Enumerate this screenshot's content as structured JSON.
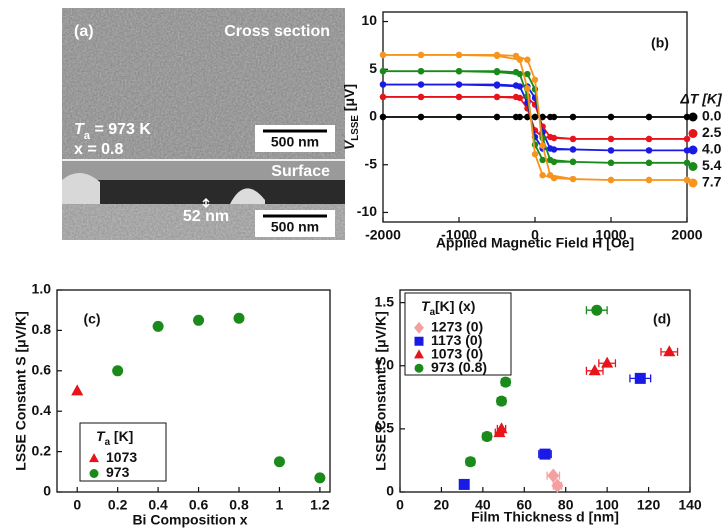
{
  "image_panel": {
    "label": "(a)",
    "top_caption": "Cross section",
    "anneal": {
      "main": "T",
      "sub": "a",
      "rest": " = 973 K"
    },
    "composition": "x = 0.8",
    "top_scale": "500 nm",
    "bottom_caption": "Surface",
    "thickness": "52 nm",
    "bottom_scale": "500 nm"
  },
  "chart_data": [
    {
      "type": "line",
      "panel_label": "(b)",
      "xlabel": "Applied Magnetic Field H [Oe]",
      "ylabel": {
        "main": "V",
        "sub": "LSSE",
        "rest": " [μV]"
      },
      "legend_title": "ΔT [K]",
      "legend": "right",
      "x": [
        -2000,
        -1500,
        -1000,
        -500,
        -250,
        -100,
        0,
        100,
        200,
        500,
        1000,
        1500,
        2000,
        2000,
        1500,
        1000,
        500,
        250,
        100,
        0,
        -100,
        -200,
        -500,
        -1000,
        -1500,
        -2000
      ],
      "xlim": [
        -2000,
        2000
      ],
      "xticks": [
        -2000,
        -1000,
        0,
        1000,
        2000
      ],
      "ylim": [
        -11,
        11
      ],
      "yticks": [
        -10,
        -5,
        0,
        5,
        10
      ],
      "series": [
        {
          "name": "0.0",
          "color": "#000000",
          "values": [
            0,
            0,
            0,
            0,
            0,
            0,
            0,
            0,
            0,
            0,
            0,
            0,
            0,
            0,
            0,
            0,
            0,
            0,
            0,
            0,
            0,
            0,
            0,
            0,
            0,
            0
          ]
        },
        {
          "name": "2.5",
          "color": "#e8141b",
          "values": [
            2.1,
            2.1,
            2.1,
            2.1,
            2.1,
            2.0,
            1.3,
            -1.0,
            -2.1,
            -2.3,
            -2.3,
            -2.3,
            -2.3,
            -2.3,
            -2.3,
            -2.3,
            -2.3,
            -2.2,
            -2.1,
            -1.4,
            0.9,
            2.0,
            2.1,
            2.1,
            2.1,
            2.1
          ]
        },
        {
          "name": "4.0",
          "color": "#1a1ae6",
          "values": [
            3.4,
            3.4,
            3.4,
            3.4,
            3.3,
            3.2,
            2.0,
            -1.6,
            -3.3,
            -3.4,
            -3.5,
            -3.5,
            -3.5,
            -3.5,
            -3.5,
            -3.5,
            -3.4,
            -3.4,
            -3.3,
            -2.1,
            1.5,
            3.2,
            3.3,
            3.4,
            3.4,
            3.4
          ]
        },
        {
          "name": "5.4",
          "color": "#1a8a1a",
          "values": [
            4.8,
            4.8,
            4.8,
            4.8,
            4.7,
            4.5,
            2.9,
            -2.2,
            -4.5,
            -4.7,
            -4.8,
            -4.8,
            -4.8,
            -4.8,
            -4.8,
            -4.8,
            -4.7,
            -4.7,
            -4.5,
            -2.9,
            2.2,
            4.5,
            4.7,
            4.8,
            4.8,
            4.8
          ]
        },
        {
          "name": "7.7",
          "color": "#f7941d",
          "values": [
            6.5,
            6.5,
            6.5,
            6.5,
            6.4,
            6.0,
            3.9,
            -3.0,
            -6.1,
            -6.5,
            -6.6,
            -6.6,
            -6.6,
            -6.6,
            -6.6,
            -6.6,
            -6.5,
            -6.4,
            -6.1,
            -3.9,
            3.0,
            6.0,
            6.4,
            6.5,
            6.5,
            6.5
          ]
        }
      ]
    },
    {
      "type": "scatter",
      "panel_label": "(c)",
      "xlabel": "Bi Composition x",
      "ylabel": "LSSE Constant S [μV/K]",
      "legend_title": {
        "main": "T",
        "sub": "a",
        "rest": " [K]"
      },
      "legend": "lower left",
      "xlim": [
        -0.1,
        1.25
      ],
      "xticks": [
        0,
        0.2,
        0.4,
        0.6,
        0.8,
        1,
        1.2
      ],
      "ylim": [
        0,
        1
      ],
      "yticks": [
        0,
        0.2,
        0.4,
        0.6,
        0.8,
        {
          "value": 1,
          "label": "1.0"
        }
      ],
      "series": [
        {
          "name": "1073",
          "color": "#e8141b",
          "marker": "triangle",
          "x": [
            0
          ],
          "values": [
            0.5
          ]
        },
        {
          "name": "973",
          "color": "#1a8a1a",
          "marker": "circle",
          "x": [
            0.2,
            0.4,
            0.6,
            0.8,
            1.0,
            1.2
          ],
          "values": [
            0.6,
            0.82,
            0.85,
            0.86,
            0.15,
            0.07
          ]
        }
      ]
    },
    {
      "type": "scatter",
      "panel_label": "(d)",
      "xlabel": "Film Thickness d [nm]",
      "ylabel": "LSSE Constant S [μV/K]",
      "legend_title": {
        "main": "T",
        "sub": "a",
        "rest": "[K]  (x)"
      },
      "legend": "upper left",
      "xlim": [
        0,
        140
      ],
      "xticks": [
        0,
        20,
        40,
        60,
        80,
        100,
        120,
        140
      ],
      "ylim": [
        0,
        1.6
      ],
      "yticks": [
        0,
        0.5,
        {
          "value": 1,
          "label": "1.0"
        },
        1.5
      ],
      "series": [
        {
          "name": "1273 (0)",
          "color": "#f4a0a0",
          "marker": "diamond",
          "x": [
            74,
            76
          ],
          "xerr": [
            3,
            2
          ],
          "values": [
            0.13,
            0.05
          ]
        },
        {
          "name": "1173 (0)",
          "color": "#1a1ae6",
          "marker": "square",
          "x": [
            31,
            70,
            116
          ],
          "xerr": [
            0,
            3,
            5
          ],
          "values": [
            0.06,
            0.3,
            0.9
          ]
        },
        {
          "name": "1073 (0)",
          "color": "#e8141b",
          "marker": "triangle",
          "x": [
            48,
            49,
            94,
            100,
            130
          ],
          "xerr": [
            2,
            2,
            4,
            4,
            4
          ],
          "values": [
            0.47,
            0.5,
            0.96,
            1.02,
            1.11
          ]
        },
        {
          "name": "973 (0.8)",
          "color": "#1a8a1a",
          "marker": "circle",
          "x": [
            34,
            42,
            49,
            51,
            95
          ],
          "xerr": [
            2,
            2,
            2,
            2,
            5
          ],
          "values": [
            0.24,
            0.44,
            0.72,
            0.87,
            1.44
          ]
        }
      ]
    }
  ]
}
